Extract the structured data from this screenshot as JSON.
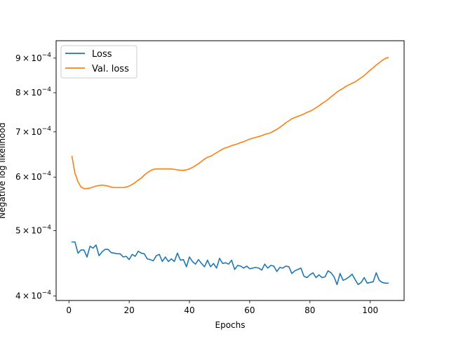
{
  "chart_data": {
    "type": "line",
    "xlabel": "Epochs",
    "ylabel": "Negative log likelihood",
    "xlim": [
      -4.25,
      111.25
    ],
    "ylim": [
      0.000394,
      0.000955
    ],
    "yscale": "log",
    "grid": false,
    "legend_position": "top-left",
    "x_ticks": [
      0,
      20,
      40,
      60,
      80,
      100
    ],
    "x_tick_labels": [
      "0",
      "20",
      "40",
      "60",
      "80",
      "100"
    ],
    "y_ticks": [
      0.0004,
      0.0005,
      0.0006,
      0.0007,
      0.0008,
      0.0009
    ],
    "y_tick_labels": [
      {
        "mant": "4",
        "exp": "−4"
      },
      {
        "mant": "5",
        "exp": "−4"
      },
      {
        "mant": "6",
        "exp": "−4"
      },
      {
        "mant": "7",
        "exp": "−4"
      },
      {
        "mant": "8",
        "exp": "−4"
      },
      {
        "mant": "9",
        "exp": "−4"
      }
    ],
    "series": [
      {
        "name": "Loss",
        "color": "#1f77b4",
        "x": [
          1,
          2,
          3,
          4,
          5,
          6,
          7,
          8,
          9,
          10,
          11,
          12,
          13,
          14,
          15,
          16,
          17,
          18,
          19,
          20,
          21,
          22,
          23,
          24,
          25,
          26,
          27,
          28,
          29,
          30,
          31,
          32,
          33,
          34,
          35,
          36,
          37,
          38,
          39,
          40,
          41,
          42,
          43,
          44,
          45,
          46,
          47,
          48,
          49,
          50,
          51,
          52,
          53,
          54,
          55,
          56,
          57,
          58,
          59,
          60,
          61,
          62,
          63,
          64,
          65,
          66,
          67,
          68,
          69,
          70,
          71,
          72,
          73,
          74,
          75,
          76,
          77,
          78,
          79,
          80,
          81,
          82,
          83,
          84,
          85,
          86,
          87,
          88,
          89,
          90,
          91,
          92,
          93,
          94,
          95,
          96,
          97,
          98,
          99,
          100,
          101,
          102,
          103,
          104,
          105,
          106
        ],
        "y": [
          0.000481,
          0.000481,
          0.000463,
          0.000468,
          0.000468,
          0.000457,
          0.000474,
          0.000471,
          0.000476,
          0.000459,
          0.000465,
          0.000469,
          0.000469,
          0.000464,
          0.000463,
          0.000462,
          0.000462,
          0.000457,
          0.000458,
          0.000453,
          0.000461,
          0.000458,
          0.000466,
          0.000463,
          0.000462,
          0.000454,
          0.000453,
          0.000451,
          0.000459,
          0.000461,
          0.00045,
          0.000457,
          0.00045,
          0.000454,
          0.00045,
          0.000463,
          0.000452,
          0.000453,
          0.000442,
          0.000457,
          0.00045,
          0.000446,
          0.000453,
          0.000447,
          0.000442,
          0.000452,
          0.000442,
          0.000447,
          0.00044,
          0.000455,
          0.000447,
          0.000448,
          0.000446,
          0.000452,
          0.000438,
          0.000444,
          0.000443,
          0.00044,
          0.000443,
          0.000439,
          0.00044,
          0.000441,
          0.00044,
          0.000437,
          0.000446,
          0.00044,
          0.000444,
          0.000443,
          0.000435,
          0.000441,
          0.00044,
          0.000443,
          0.000442,
          0.000432,
          0.000436,
          0.000438,
          0.00044,
          0.000428,
          0.000426,
          0.00043,
          0.000433,
          0.000426,
          0.00043,
          0.000426,
          0.000427,
          0.000436,
          0.000433,
          0.000427,
          0.000416,
          0.000432,
          0.000422,
          0.000424,
          0.000427,
          0.000431,
          0.000423,
          0.000416,
          0.000419,
          0.000426,
          0.000418,
          0.000419,
          0.00042,
          0.000433,
          0.000422,
          0.000419,
          0.000418,
          0.000418
        ]
      },
      {
        "name": "Val. loss",
        "color": "#ff7f0e",
        "x": [
          1,
          2,
          3,
          4,
          5,
          6,
          7,
          8,
          9,
          10,
          11,
          12,
          13,
          14,
          15,
          16,
          17,
          18,
          19,
          20,
          21,
          22,
          23,
          24,
          25,
          26,
          27,
          28,
          29,
          30,
          31,
          32,
          33,
          34,
          35,
          36,
          37,
          38,
          39,
          40,
          41,
          42,
          43,
          44,
          45,
          46,
          47,
          48,
          49,
          50,
          51,
          52,
          53,
          54,
          55,
          56,
          57,
          58,
          59,
          60,
          61,
          62,
          63,
          64,
          65,
          66,
          67,
          68,
          69,
          70,
          71,
          72,
          73,
          74,
          75,
          76,
          77,
          78,
          79,
          80,
          81,
          82,
          83,
          84,
          85,
          86,
          87,
          88,
          89,
          90,
          91,
          92,
          93,
          94,
          95,
          96,
          97,
          98,
          99,
          100,
          101,
          102,
          103,
          104,
          105,
          106
        ],
        "y": [
          0.000644,
          0.000608,
          0.000591,
          0.00058,
          0.000577,
          0.000577,
          0.000578,
          0.00058,
          0.000582,
          0.000583,
          0.000584,
          0.000583,
          0.000582,
          0.00058,
          0.000579,
          0.000579,
          0.000579,
          0.000579,
          0.00058,
          0.000582,
          0.000585,
          0.000589,
          0.000594,
          0.000598,
          0.000604,
          0.000609,
          0.000613,
          0.000616,
          0.000617,
          0.000617,
          0.000617,
          0.000617,
          0.000617,
          0.000617,
          0.000616,
          0.000615,
          0.000614,
          0.000614,
          0.000615,
          0.000617,
          0.00062,
          0.000624,
          0.000628,
          0.000633,
          0.000638,
          0.000642,
          0.000644,
          0.000648,
          0.000652,
          0.000656,
          0.00066,
          0.000663,
          0.000665,
          0.000668,
          0.00067,
          0.000672,
          0.000675,
          0.000677,
          0.00068,
          0.000683,
          0.000685,
          0.000687,
          0.000689,
          0.000691,
          0.000694,
          0.000696,
          0.000698,
          0.000702,
          0.000706,
          0.000711,
          0.000716,
          0.000722,
          0.000727,
          0.000732,
          0.000735,
          0.000738,
          0.000741,
          0.000744,
          0.000748,
          0.000751,
          0.000755,
          0.00076,
          0.000765,
          0.000771,
          0.000776,
          0.000782,
          0.000789,
          0.000795,
          0.000802,
          0.000807,
          0.000812,
          0.000818,
          0.000822,
          0.000826,
          0.00083,
          0.000836,
          0.000842,
          0.000848,
          0.000856,
          0.000864,
          0.000871,
          0.000879,
          0.000886,
          0.000893,
          0.000899,
          0.000902
        ]
      }
    ]
  }
}
